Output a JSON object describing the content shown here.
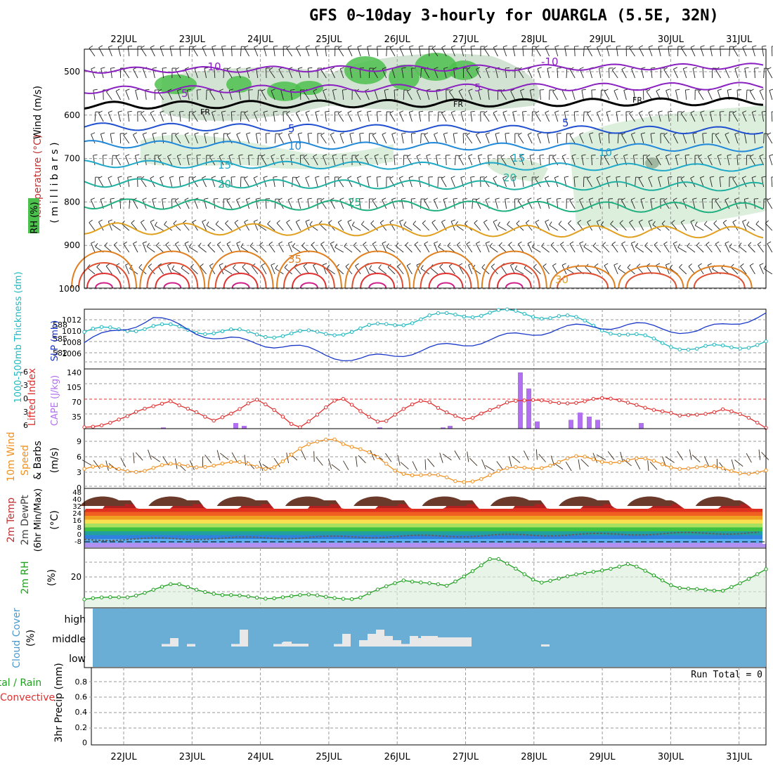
{
  "title": "GFS 0~10day 3-hourly for OUARGLA (5.5E, 32N)",
  "dates": [
    "22JUL",
    "23JUL",
    "24JUL",
    "25JUL",
    "26JUL",
    "27JUL",
    "28JUL",
    "29JUL",
    "30JUL",
    "31JUL"
  ],
  "colors": {
    "grid": "#9a9a9a",
    "temp_warm": "#e03030",
    "temp_mid": "#e08020",
    "temp_cool": "#20b0a0",
    "temp_cold": "#2050d0",
    "temp_freeze": "#000000",
    "temp_negative": "#8a20c0",
    "rh_green": "#4cc04c",
    "rh_pale": "#d8ecd8",
    "thickness": "#20b8c0",
    "slp": "#1a38c8",
    "lifted_index": "#e03030",
    "cape": "#b070f0",
    "wind10m": "#f09020",
    "barb": "#3a2a1a",
    "dewpoint": "#606060",
    "rh2m": "#20a020",
    "cloud_bg": "#6aaed6",
    "cloud_bar": "#e8e8e8"
  },
  "panels": {
    "upper": {
      "ylabel_wind": "Wind (m/s)",
      "ylabel_temp": "Temperature (°C)",
      "ylabel_rh": "RH (%)",
      "ylabel_mb": "( m i l l i b a r s )",
      "y_ticks": [
        "500",
        "600",
        "700",
        "800",
        "900",
        "1000"
      ],
      "contour_labels": [
        "-10",
        "5",
        "FR",
        "5",
        "10",
        "15",
        "20",
        "25",
        "35",
        "30",
        "-10",
        "5",
        "FR",
        "15",
        "20",
        "5",
        "10",
        "FR",
        "35",
        "30"
      ]
    },
    "thickness_slp": {
      "ylabel_thick": "1000-500mb Thickness (dm)",
      "ylabel_slp": "SLP (mb)",
      "left_ticks": [
        "588",
        "585",
        "582"
      ],
      "right_ticks": [
        "1012",
        "1010",
        "1008",
        "1006"
      ]
    },
    "li_cape": {
      "ylabel_li": "Lifted Index",
      "ylabel_cape": "CAPE (J/kg)",
      "left_ticks": [
        "-6",
        "-3",
        "0",
        "3",
        "6"
      ],
      "right_ticks": [
        "140",
        "105",
        "70",
        "35"
      ]
    },
    "wind10m": {
      "ylabel_a": "10m Wind",
      "ylabel_b": "Speed",
      "ylabel_c": "& Barbs",
      "ylabel_unit": "(m/s)",
      "y_ticks": [
        "9",
        "6",
        "3",
        "0"
      ]
    },
    "temp2m": {
      "ylabel_a": "2m Temp",
      "ylabel_b": "2m DewPt",
      "ylabel_c": "(6hr Min/Max)",
      "ylabel_unit": "(°C)",
      "y_ticks": [
        "48",
        "40",
        "32",
        "24",
        "16",
        "8",
        "0",
        "-8"
      ]
    },
    "rh2m": {
      "ylabel": "2m RH",
      "ylabel_unit": "(%)",
      "y_ticks": [
        "20"
      ]
    },
    "cloud": {
      "ylabel": "Cloud Cover",
      "ylabel_unit": "(%)",
      "levels": [
        "high",
        "middle",
        "low"
      ]
    },
    "precip": {
      "ylabel_a": "Total / Rain",
      "ylabel_b": "Convective",
      "ylabel_c": "3hr Precip (mm)",
      "y_ticks": [
        "0.8",
        "0.6",
        "0.4",
        "0.2",
        "0"
      ],
      "run_total": "Run Total = 0"
    }
  },
  "chart_data": [
    {
      "type": "line",
      "title": "1000-500mb Thickness / SLP",
      "x": [
        "21JUL 12Z",
        "22JUL",
        "23JUL",
        "24JUL",
        "25JUL",
        "26JUL",
        "27JUL",
        "28JUL",
        "29JUL",
        "30JUL",
        "31JUL"
      ],
      "series": [
        {
          "name": "1000-500mb Thickness (dm)",
          "values": [
            586.0,
            586.8,
            586.0,
            585.6,
            586.2,
            588.0,
            588.8,
            588.2,
            585.5,
            583.5,
            584.5
          ]
        },
        {
          "name": "SLP (mb)",
          "values": [
            1008.5,
            1012.0,
            1009.0,
            1008.0,
            1006.0,
            1007.5,
            1009.0,
            1010.5,
            1011.0,
            1010.0,
            1012.5
          ]
        }
      ],
      "ylim_left": [
        581,
        589
      ],
      "ylim_right": [
        1005,
        1013
      ]
    },
    {
      "type": "bar",
      "title": "CAPE (J/kg)",
      "x": [
        "22JUL 15Z",
        "23JUL 21Z",
        "24JUL 00Z",
        "25JUL 21Z",
        "26JUL 15Z",
        "26JUL 18Z",
        "27JUL 18Z",
        "27JUL 21Z",
        "28JUL 00Z",
        "28JUL 15Z",
        "28JUL 18Z",
        "28JUL 21Z",
        "29JUL 00Z",
        "29JUL 15Z"
      ],
      "values": [
        3,
        14,
        7,
        3,
        3,
        7,
        140,
        100,
        18,
        22,
        40,
        30,
        22,
        14
      ],
      "ylim": [
        0,
        140
      ]
    },
    {
      "type": "line",
      "title": "Lifted Index",
      "x": [
        "22JUL",
        "22JUL 12Z",
        "23JUL",
        "23JUL 12Z",
        "24JUL",
        "24JUL 12Z",
        "25JUL",
        "25JUL 12Z",
        "26JUL",
        "26JUL 12Z",
        "27JUL",
        "27JUL 12Z",
        "28JUL",
        "28JUL 12Z",
        "29JUL",
        "29JUL 12Z",
        "30JUL"
      ],
      "values": [
        6,
        4,
        0,
        5,
        0,
        6,
        0,
        5,
        0,
        5,
        0,
        1,
        0,
        1,
        4,
        2,
        6
      ],
      "ylim": [
        -6,
        6
      ]
    },
    {
      "type": "line",
      "title": "10m Wind Speed (m/s)",
      "x": [
        "22JUL",
        "23JUL",
        "24JUL",
        "25JUL",
        "25JUL 12Z",
        "26JUL",
        "26JUL 12Z",
        "27JUL",
        "28JUL",
        "29JUL",
        "30JUL",
        "31JUL"
      ],
      "values": [
        3.5,
        3.5,
        4.5,
        4.0,
        10.0,
        3.5,
        1.0,
        3.5,
        5.5,
        5.0,
        3.5,
        3.0
      ],
      "ylim": [
        0,
        11
      ]
    },
    {
      "type": "area",
      "title": "2m Temp (°C)",
      "x": [
        "22JUL",
        "22JUL 15Z",
        "23JUL 15Z",
        "24JUL 15Z",
        "25JUL 15Z",
        "26JUL 15Z",
        "27JUL 15Z",
        "28JUL 15Z",
        "29JUL 15Z",
        "30JUL 15Z",
        "31JUL 15Z"
      ],
      "values": [
        30,
        44,
        45,
        45,
        45,
        45,
        45,
        43,
        41,
        40,
        38
      ],
      "ylim": [
        -8,
        48
      ]
    },
    {
      "type": "area",
      "title": "2m RH (%)",
      "x": [
        "22JUL",
        "23JUL",
        "23JUL 12Z",
        "24JUL",
        "25JUL",
        "26JUL",
        "26JUL 12Z",
        "27JUL",
        "28JUL",
        "28JUL 06Z",
        "28JUL 18Z",
        "29JUL",
        "29JUL 06Z",
        "30JUL",
        "30JUL 12Z",
        "31JUL"
      ],
      "values": [
        5,
        7,
        16,
        8,
        6,
        8,
        5,
        19,
        14,
        35,
        17,
        23,
        30,
        14,
        10,
        26
      ],
      "ylim": [
        0,
        40
      ]
    },
    {
      "type": "bar",
      "title": "Cloud Cover (%) middle",
      "x": [
        "22JUL 15Z",
        "22JUL 18Z",
        "23JUL",
        "23JUL 18Z",
        "23JUL 21Z",
        "24JUL 06Z",
        "24JUL 12Z",
        "25JUL 12Z",
        "25JUL 15Z",
        "25JUL 21Z",
        "26JUL 00Z",
        "26JUL 03Z",
        "26JUL 06Z",
        "26JUL 09Z",
        "26JUL 12Z",
        "26JUL 15Z",
        "26JUL 18Z",
        "26JUL 21Z",
        "28JUL 03Z"
      ],
      "values": [
        12,
        40,
        12,
        12,
        80,
        12,
        20,
        12,
        60,
        30,
        60,
        80,
        50,
        30,
        12,
        50,
        40,
        40,
        10
      ],
      "ylim": [
        0,
        100
      ]
    }
  ]
}
